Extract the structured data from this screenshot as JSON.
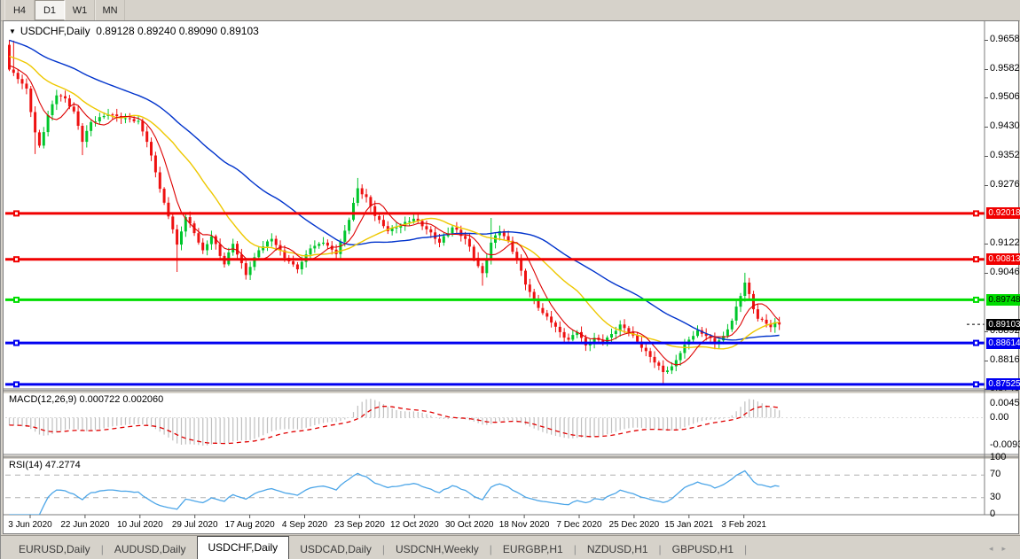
{
  "toolbar": {
    "buttons": [
      {
        "label": "H4",
        "active": false
      },
      {
        "label": "D1",
        "active": true
      },
      {
        "label": "W1",
        "active": false
      },
      {
        "label": "MN",
        "active": false
      }
    ]
  },
  "chart": {
    "symbol_title": "USDCHF,Daily",
    "ohlc_text": "0.89128 0.89240 0.89090 0.89103",
    "menu_triangle_icon": "▼"
  },
  "indicators": {
    "macd_label": "MACD(12,26,9) 0.000722 0.002060",
    "rsi_label": "RSI(14) 47.2774"
  },
  "price_axis": {
    "labels": [
      "0.96580",
      "0.95820",
      "0.95060",
      "0.94300",
      "0.93520",
      "0.92760",
      "0.91220",
      "0.90460",
      "0.88920",
      "0.88160",
      "0.87400"
    ],
    "badges": [
      {
        "value": "0.92018",
        "bg": "#f00000",
        "fg": "#ffffff"
      },
      {
        "value": "0.90813",
        "bg": "#f00000",
        "fg": "#ffffff"
      },
      {
        "value": "0.89748",
        "bg": "#00dd00",
        "fg": "#000000"
      },
      {
        "value": "0.89103",
        "bg": "#000000",
        "fg": "#ffffff"
      },
      {
        "value": "0.88614",
        "bg": "#0000f0",
        "fg": "#ffffff"
      },
      {
        "value": "0.87525",
        "bg": "#0000f0",
        "fg": "#ffffff"
      }
    ]
  },
  "macd_axis": {
    "labels": [
      "0.004527",
      "0.00",
      "-0.009348"
    ],
    "values": [
      0.004527,
      0,
      -0.009348
    ]
  },
  "rsi_axis": {
    "labels": [
      "100",
      "70",
      "30",
      "0"
    ],
    "values": [
      100,
      70,
      30,
      0
    ]
  },
  "time_axis": {
    "labels": [
      "3 Jun 2020",
      "22 Jun 2020",
      "10 Jul 2020",
      "29 Jul 2020",
      "17 Aug 2020",
      "4 Sep 2020",
      "23 Sep 2020",
      "12 Oct 2020",
      "30 Oct 2020",
      "18 Nov 2020",
      "7 Dec 2020",
      "25 Dec 2020",
      "15 Jan 2021",
      "3 Feb 2021"
    ]
  },
  "tabs": {
    "items": [
      {
        "label": "EURUSD,Daily",
        "active": false
      },
      {
        "label": "AUDUSD,Daily",
        "active": false
      },
      {
        "label": "USDCHF,Daily",
        "active": true
      },
      {
        "label": "USDCAD,Daily",
        "active": false
      },
      {
        "label": "USDCNH,Weekly",
        "active": false
      },
      {
        "label": "EURGBP,H1",
        "active": false
      },
      {
        "label": "NZDUSD,H1",
        "active": false
      },
      {
        "label": "GBPUSD,H1",
        "active": false
      }
    ],
    "scroll_left_icon": "◂",
    "scroll_right_icon": "▸"
  },
  "chart_data": {
    "type": "candlestick",
    "symbol": "USDCHF",
    "timeframe": "Daily",
    "current_ohlc": {
      "open": 0.89128,
      "high": 0.8924,
      "low": 0.8909,
      "close": 0.89103
    },
    "x_range": [
      "3 Jun 2020",
      "12 Feb 2021"
    ],
    "y_range": [
      0.874,
      0.97
    ],
    "colors": {
      "bull": "#00c62c",
      "bear": "#ee1111",
      "ma_fast": "#dd0000",
      "ma_mid": "#eec800",
      "ma_slow": "#0033cc",
      "macd_histogram": "#bfbfbf",
      "macd_signal": "#e00000",
      "rsi_line": "#4da6e8",
      "level_red": "#f00000",
      "level_green": "#00dd00",
      "level_blue": "#0000f0"
    },
    "horizontal_lines": [
      {
        "price": 0.92018,
        "color": "#f00000",
        "role": "resistance"
      },
      {
        "price": 0.90813,
        "color": "#f00000",
        "role": "resistance"
      },
      {
        "price": 0.89748,
        "color": "#00dd00",
        "role": "pivot"
      },
      {
        "price": 0.88614,
        "color": "#0000f0",
        "role": "support"
      },
      {
        "price": 0.87525,
        "color": "#0000f0",
        "role": "support"
      }
    ],
    "moving_averages": [
      {
        "period": 7,
        "color": "#dd0000"
      },
      {
        "period": 21,
        "color": "#eec800"
      },
      {
        "period": 45,
        "color": "#0033cc"
      }
    ],
    "macd": {
      "params": [
        12,
        26,
        9
      ],
      "current_macd": 0.000722,
      "current_signal": 0.00206,
      "axis_max": 0.004527,
      "axis_min": -0.009348
    },
    "rsi": {
      "period": 14,
      "current": 47.2774,
      "levels": [
        70,
        30
      ]
    },
    "bar_count": 180,
    "first_open": 0.9645,
    "close_anchors": [
      [
        0,
        0.958
      ],
      [
        2,
        0.9555
      ],
      [
        4,
        0.953
      ],
      [
        6,
        0.9415
      ],
      [
        7,
        0.938
      ],
      [
        9,
        0.946
      ],
      [
        11,
        0.9512
      ],
      [
        13,
        0.9504
      ],
      [
        15,
        0.947
      ],
      [
        17,
        0.939
      ],
      [
        19,
        0.9442
      ],
      [
        23,
        0.9462
      ],
      [
        27,
        0.9452
      ],
      [
        30,
        0.9445
      ],
      [
        32,
        0.939
      ],
      [
        34,
        0.931
      ],
      [
        36,
        0.923
      ],
      [
        38,
        0.916
      ],
      [
        39,
        0.912
      ],
      [
        41,
        0.9192
      ],
      [
        43,
        0.915
      ],
      [
        45,
        0.9105
      ],
      [
        47,
        0.9142
      ],
      [
        50,
        0.9068
      ],
      [
        52,
        0.9122
      ],
      [
        55,
        0.904
      ],
      [
        58,
        0.9105
      ],
      [
        61,
        0.9135
      ],
      [
        64,
        0.9085
      ],
      [
        67,
        0.9055
      ],
      [
        70,
        0.911
      ],
      [
        73,
        0.9125
      ],
      [
        76,
        0.9095
      ],
      [
        79,
        0.9185
      ],
      [
        81,
        0.9268
      ],
      [
        83,
        0.9245
      ],
      [
        85,
        0.9195
      ],
      [
        88,
        0.9155
      ],
      [
        91,
        0.917
      ],
      [
        94,
        0.9188
      ],
      [
        97,
        0.916
      ],
      [
        100,
        0.9125
      ],
      [
        103,
        0.9165
      ],
      [
        106,
        0.9135
      ],
      [
        108,
        0.9085
      ],
      [
        110,
        0.9045
      ],
      [
        112,
        0.9125
      ],
      [
        114,
        0.9155
      ],
      [
        116,
        0.913
      ],
      [
        118,
        0.908
      ],
      [
        120,
        0.9015
      ],
      [
        122,
        0.8975
      ],
      [
        124,
        0.894
      ],
      [
        126,
        0.8915
      ],
      [
        128,
        0.889
      ],
      [
        130,
        0.887
      ],
      [
        132,
        0.889
      ],
      [
        134,
        0.8855
      ],
      [
        136,
        0.8875
      ],
      [
        138,
        0.886
      ],
      [
        140,
        0.8885
      ],
      [
        142,
        0.891
      ],
      [
        144,
        0.889
      ],
      [
        146,
        0.8865
      ],
      [
        148,
        0.884
      ],
      [
        150,
        0.881
      ],
      [
        152,
        0.8785
      ],
      [
        154,
        0.88
      ],
      [
        156,
        0.8835
      ],
      [
        158,
        0.887
      ],
      [
        160,
        0.8895
      ],
      [
        162,
        0.888
      ],
      [
        164,
        0.886
      ],
      [
        166,
        0.888
      ],
      [
        168,
        0.892
      ],
      [
        170,
        0.8985
      ],
      [
        171,
        0.902
      ],
      [
        172,
        0.899
      ],
      [
        173,
        0.895
      ],
      [
        174,
        0.8925
      ],
      [
        176,
        0.8912
      ],
      [
        177,
        0.8903
      ],
      [
        178,
        0.8916
      ],
      [
        179,
        0.891
      ]
    ],
    "wick_overrides": {
      "high": {
        "0": 0.9658,
        "1": 0.9656,
        "81": 0.9295,
        "94": 0.9202,
        "112": 0.919,
        "171": 0.9046
      },
      "low": {
        "6": 0.9358,
        "17": 0.9355,
        "39": 0.9048,
        "55": 0.9028,
        "110": 0.9012,
        "152": 0.8753
      }
    }
  }
}
